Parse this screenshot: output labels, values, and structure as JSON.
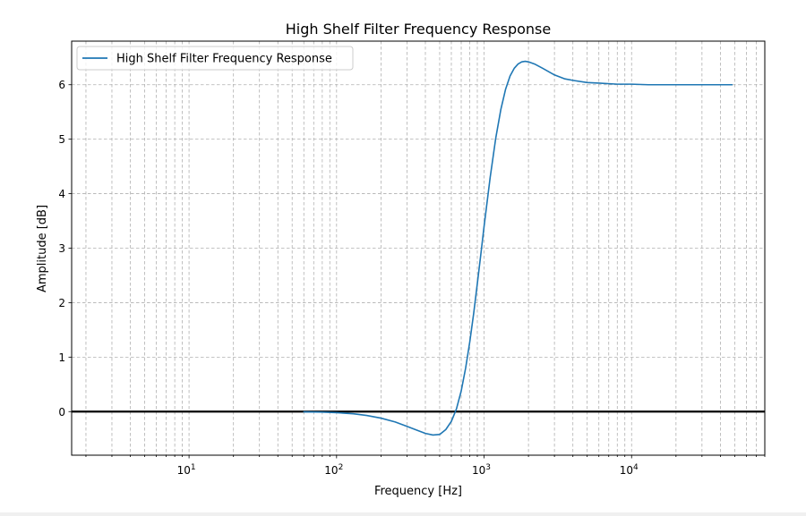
{
  "chart_data": {
    "type": "line",
    "title": "High Shelf Filter Frequency Response",
    "xlabel": "Frequency [Hz]",
    "ylabel": "Amplitude [dB]",
    "x_scale": "log",
    "xlim": [
      1.6,
      80000
    ],
    "ylim": [
      -0.8,
      6.8
    ],
    "x_ticks": [
      {
        "value": 10,
        "base": "10",
        "exp": "1"
      },
      {
        "value": 100,
        "base": "10",
        "exp": "2"
      },
      {
        "value": 1000,
        "base": "10",
        "exp": "3"
      },
      {
        "value": 10000,
        "base": "10",
        "exp": "4"
      }
    ],
    "y_ticks": [
      0,
      1,
      2,
      3,
      4,
      5,
      6
    ],
    "grid": true,
    "grid_minor": true,
    "legend_position": "upper-left",
    "horizontal_reference_line": {
      "y": 0,
      "color": "#000000"
    },
    "series": [
      {
        "name": "High Shelf Filter Frequency Response",
        "color": "#1f77b4",
        "x": [
          60,
          80,
          100,
          130,
          160,
          200,
          250,
          300,
          350,
          400,
          450,
          500,
          550,
          600,
          650,
          700,
          750,
          800,
          850,
          900,
          950,
          1000,
          1100,
          1200,
          1300,
          1400,
          1500,
          1600,
          1700,
          1800,
          1900,
          2000,
          2200,
          2500,
          3000,
          3500,
          4000,
          5000,
          6000,
          8000,
          10000,
          13000,
          16000,
          20000,
          30000,
          48000
        ],
        "y": [
          -0.005,
          -0.01,
          -0.02,
          -0.04,
          -0.07,
          -0.12,
          -0.19,
          -0.27,
          -0.34,
          -0.4,
          -0.43,
          -0.42,
          -0.33,
          -0.18,
          0.05,
          0.38,
          0.8,
          1.28,
          1.8,
          2.35,
          2.88,
          3.4,
          4.3,
          5.02,
          5.55,
          5.92,
          6.16,
          6.3,
          6.38,
          6.42,
          6.43,
          6.42,
          6.38,
          6.3,
          6.18,
          6.11,
          6.08,
          6.04,
          6.03,
          6.01,
          6.01,
          6.0,
          6.0,
          6.0,
          6.0,
          6.0
        ]
      }
    ]
  }
}
